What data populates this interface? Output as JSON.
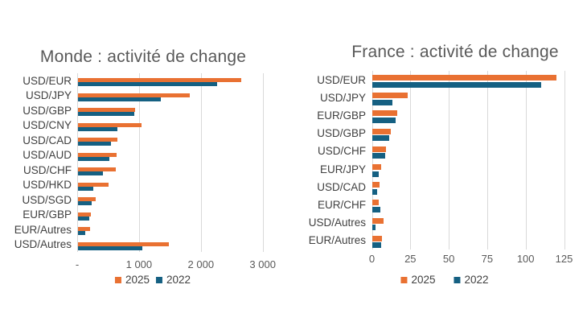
{
  "figure": {
    "background": "#ffffff"
  },
  "colors": {
    "series_2025": "#E97132",
    "series_2022": "#156082",
    "gridline": "#D9D9D9",
    "title_text": "#595959",
    "category_text": "#404040",
    "tick_text": "#595959",
    "legend_text": "#404040"
  },
  "chart_data": [
    {
      "type": "bar",
      "orientation": "horizontal",
      "title": "Monde : activité de change",
      "categories": [
        "USD/EUR",
        "USD/JPY",
        "USD/GBP",
        "USD/CNY",
        "USD/CAD",
        "USD/AUD",
        "USD/CHF",
        "USD/HKD",
        "USD/SGD",
        "EUR/GBP",
        "EUR/Autres",
        "USD/Autres"
      ],
      "series": [
        {
          "name": "2025",
          "color": "#E97132",
          "values": [
            2650,
            1820,
            930,
            1030,
            640,
            630,
            615,
            495,
            295,
            220,
            205,
            1480
          ]
        },
        {
          "name": "2022",
          "color": "#156082",
          "values": [
            2250,
            1345,
            920,
            650,
            545,
            520,
            405,
            250,
            230,
            195,
            120,
            1050
          ]
        }
      ],
      "xlim": [
        0,
        3000
      ],
      "xticks": [
        {
          "value": 0,
          "label": "-"
        },
        {
          "value": 1000,
          "label": "1 000"
        },
        {
          "value": 2000,
          "label": "2 000"
        },
        {
          "value": 3000,
          "label": "3 000"
        }
      ],
      "grid": true,
      "legend_position": "bottom"
    },
    {
      "type": "bar",
      "orientation": "horizontal",
      "title": "France : activité de change",
      "categories": [
        "USD/EUR",
        "USD/JPY",
        "EUR/GBP",
        "USD/GBP",
        "USD/CHF",
        "EUR/JPY",
        "USD/CAD",
        "EUR/CHF",
        "USD/Autres",
        "EUR/Autres"
      ],
      "series": [
        {
          "name": "2025",
          "color": "#E97132",
          "values": [
            120,
            23,
            16,
            12,
            9,
            5.5,
            4.5,
            4,
            7.5,
            6.5
          ]
        },
        {
          "name": "2022",
          "color": "#156082",
          "values": [
            110,
            13,
            15,
            11,
            8.5,
            4,
            3,
            5,
            2,
            6
          ]
        }
      ],
      "xlim": [
        0,
        125
      ],
      "xticks": [
        {
          "value": 0,
          "label": "0"
        },
        {
          "value": 25,
          "label": "25"
        },
        {
          "value": 50,
          "label": "50"
        },
        {
          "value": 75,
          "label": "75"
        },
        {
          "value": 100,
          "label": "100"
        },
        {
          "value": 125,
          "label": "125"
        }
      ],
      "grid": true,
      "legend_position": "bottom"
    }
  ]
}
